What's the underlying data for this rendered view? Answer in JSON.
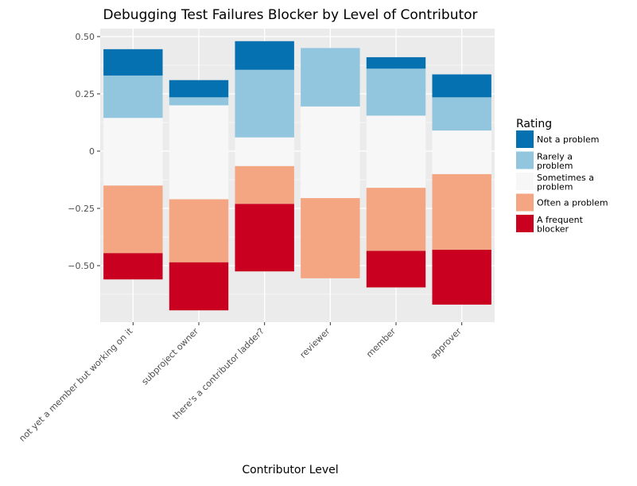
{
  "chart_data": {
    "type": "bar",
    "stacked": "diverging",
    "title": "Debugging Test Failures Blocker by Level of Contributor",
    "xlabel": "Contributor Level",
    "ylabel": "",
    "ylim": [
      -0.75,
      0.5
    ],
    "yticks": [
      {
        "value": 0.5,
        "label": "0.50"
      },
      {
        "value": 0.25,
        "label": "0.25"
      },
      {
        "value": 0,
        "label": "0"
      },
      {
        "value": -0.25,
        "label": "−0.25"
      },
      {
        "value": -0.5,
        "label": "−0.50"
      }
    ],
    "grid": true,
    "legend_position": "right",
    "legend_title": "Rating",
    "categories": [
      "not yet a member but working on it",
      "subproject owner",
      "there's a contributor ladder?",
      "reviewer",
      "member",
      "approver"
    ],
    "series": [
      {
        "name": "A frequent blocker",
        "legend_lines": [
          "A frequent",
          "blocker"
        ],
        "color": "#ca0020",
        "ranges": [
          [
            -0.56,
            -0.445
          ],
          [
            -0.695,
            -0.485
          ],
          [
            -0.525,
            -0.23
          ],
          null,
          [
            -0.595,
            -0.435
          ],
          [
            -0.67,
            -0.43
          ]
        ]
      },
      {
        "name": "Often a problem",
        "legend_lines": [
          "Often a problem"
        ],
        "color": "#f4a582",
        "ranges": [
          [
            -0.445,
            -0.15
          ],
          [
            -0.485,
            -0.21
          ],
          [
            -0.23,
            -0.065
          ],
          [
            -0.555,
            -0.205
          ],
          [
            -0.435,
            -0.16
          ],
          [
            -0.43,
            -0.1
          ]
        ]
      },
      {
        "name": "Sometimes a problem",
        "legend_lines": [
          "Sometimes a",
          "problem"
        ],
        "color": "#f7f7f7",
        "ranges": [
          [
            -0.15,
            0.145
          ],
          [
            -0.21,
            0.2
          ],
          [
            -0.065,
            0.06
          ],
          [
            -0.205,
            0.195
          ],
          [
            -0.16,
            0.155
          ],
          [
            -0.1,
            0.09
          ]
        ]
      },
      {
        "name": "Rarely a problem",
        "legend_lines": [
          "Rarely a",
          "problem"
        ],
        "color": "#92c5de",
        "ranges": [
          [
            0.145,
            0.33
          ],
          [
            0.2,
            0.235
          ],
          [
            0.06,
            0.355
          ],
          [
            0.195,
            0.45
          ],
          [
            0.155,
            0.36
          ],
          [
            0.09,
            0.235
          ]
        ]
      },
      {
        "name": "Not a problem",
        "legend_lines": [
          "Not a problem"
        ],
        "color": "#0571b0",
        "ranges": [
          [
            0.33,
            0.445
          ],
          [
            0.235,
            0.31
          ],
          [
            0.355,
            0.48
          ],
          null,
          [
            0.36,
            0.41
          ],
          [
            0.235,
            0.335
          ]
        ]
      }
    ],
    "legend_order": [
      "Not a problem",
      "Rarely a problem",
      "Sometimes a problem",
      "Often a problem",
      "A frequent blocker"
    ]
  },
  "colors": {
    "panel_background": "#ebebeb",
    "grid_major": "#ffffff",
    "text_dark": "#000000",
    "tick_text": "#4d4d4d"
  }
}
